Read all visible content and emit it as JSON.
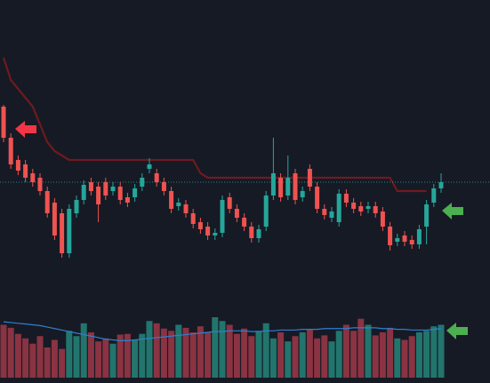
{
  "chart_data": {
    "type": "candlestick",
    "open": [
      200,
      165,
      140,
      135,
      125,
      120,
      105,
      92,
      80,
      35,
      80,
      95,
      115,
      110,
      115,
      105,
      110,
      98,
      98,
      110,
      130,
      125,
      115,
      105,
      88,
      90,
      80,
      70,
      65,
      55,
      58,
      98,
      85,
      75,
      65,
      52,
      65,
      100,
      120,
      100,
      125,
      98,
      130,
      110,
      85,
      75,
      70,
      102,
      92,
      88,
      85,
      88,
      82,
      65,
      48,
      55,
      50,
      45,
      65,
      92,
      108
    ],
    "high": [
      202,
      170,
      145,
      140,
      130,
      125,
      110,
      97,
      85,
      90,
      100,
      117,
      120,
      115,
      120,
      115,
      115,
      103,
      113,
      125,
      142,
      130,
      120,
      110,
      97,
      95,
      85,
      75,
      70,
      63,
      100,
      103,
      90,
      80,
      70,
      67,
      105,
      165,
      125,
      145,
      130,
      110,
      135,
      115,
      90,
      87,
      107,
      107,
      97,
      93,
      93,
      93,
      87,
      70,
      57,
      60,
      55,
      67,
      95,
      113,
      125
    ],
    "low": [
      160,
      130,
      123,
      115,
      110,
      100,
      75,
      50,
      30,
      30,
      75,
      90,
      100,
      70,
      95,
      100,
      90,
      87,
      93,
      105,
      125,
      110,
      100,
      80,
      83,
      75,
      63,
      57,
      50,
      50,
      53,
      80,
      70,
      60,
      47,
      47,
      60,
      95,
      93,
      95,
      90,
      93,
      105,
      80,
      73,
      70,
      65,
      87,
      80,
      77,
      80,
      75,
      60,
      38,
      43,
      43,
      40,
      40,
      45,
      87,
      103
    ],
    "close": [
      165,
      135,
      128,
      120,
      115,
      105,
      80,
      55,
      35,
      85,
      95,
      112,
      105,
      90,
      100,
      110,
      95,
      92,
      108,
      120,
      135,
      115,
      105,
      85,
      92,
      80,
      68,
      62,
      55,
      58,
      95,
      85,
      75,
      65,
      52,
      62,
      100,
      125,
      98,
      120,
      95,
      105,
      110,
      85,
      78,
      82,
      102,
      92,
      85,
      82,
      88,
      80,
      65,
      44,
      52,
      48,
      45,
      62,
      90,
      108,
      115
    ],
    "ylim": [
      0,
      320
    ],
    "volume": [
      70,
      66,
      58,
      52,
      45,
      55,
      40,
      50,
      38,
      62,
      55,
      72,
      60,
      48,
      52,
      45,
      57,
      58,
      50,
      58,
      75,
      72,
      65,
      62,
      70,
      66,
      60,
      68,
      60,
      80,
      75,
      70,
      58,
      65,
      55,
      62,
      72,
      52,
      60,
      48,
      55,
      60,
      64,
      52,
      56,
      48,
      62,
      70,
      62,
      78,
      70,
      56,
      60,
      66,
      52,
      50,
      55,
      60,
      62,
      68,
      70
    ],
    "volume_ma": [
      74,
      73,
      72,
      71,
      70,
      69,
      67,
      65,
      63,
      61,
      59,
      57,
      55,
      53,
      51,
      50,
      49,
      49,
      50,
      51,
      52,
      53,
      54,
      55,
      56,
      57,
      58,
      59,
      60,
      61,
      61,
      62,
      62,
      62,
      61,
      61,
      62,
      62,
      63,
      63,
      63,
      64,
      64,
      64,
      65,
      65,
      65,
      65,
      66,
      66,
      66,
      66,
      65,
      65,
      64,
      64,
      63,
      63,
      63,
      64,
      65
    ],
    "volume_ylim": [
      0,
      100
    ],
    "stop_line": [
      255,
      230,
      220,
      210,
      200,
      180,
      160,
      150,
      145,
      140,
      140,
      140,
      140,
      140,
      140,
      140,
      140,
      140,
      140,
      140,
      140,
      140,
      140,
      140,
      140,
      140,
      140,
      125,
      120,
      120,
      120,
      120,
      120,
      120,
      120,
      120,
      120,
      120,
      120,
      120,
      120,
      120,
      120,
      120,
      120,
      120,
      120,
      120,
      120,
      120,
      120,
      120,
      120,
      120,
      105,
      105,
      105,
      105,
      105,
      null,
      null
    ],
    "up_color": "#26a69a",
    "down_color": "#ef5350",
    "up_volume_color": "#22756d",
    "down_volume_color": "#8a3342",
    "volume_ma_color": "#2f7fd0",
    "stop_color": "#6e1a1f"
  }
}
